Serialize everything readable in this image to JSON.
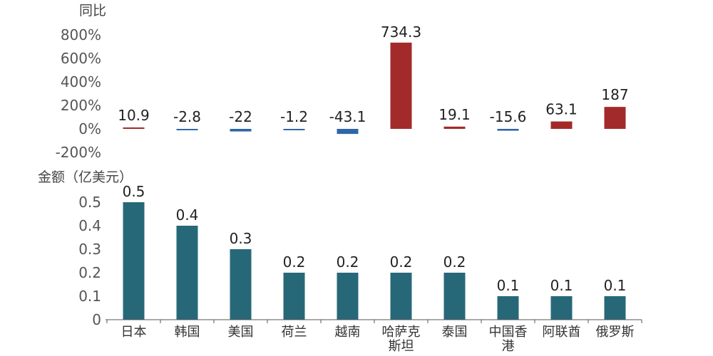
{
  "chart_data": [
    {
      "type": "bar",
      "ylabel": "同比",
      "ylim": [
        -200,
        800
      ],
      "yticks": [
        -200,
        0,
        200,
        400,
        600,
        800
      ],
      "ytick_labels": [
        "-200%",
        "0%",
        "200%",
        "400%",
        "600%",
        "800%"
      ],
      "categories": [
        "日本",
        "韩国",
        "美国",
        "荷兰",
        "越南",
        "哈萨克斯坦",
        "泰国",
        "中国香港",
        "阿联酋",
        "俄罗斯"
      ],
      "values": [
        10.9,
        -2.8,
        -22,
        -1.2,
        -43.1,
        734.3,
        19.1,
        -15.6,
        63.1,
        187
      ],
      "value_labels": [
        "10.9",
        "-2.8",
        "-22",
        "-1.2",
        "-43.1",
        "734.3",
        "19.1",
        "-15.6",
        "63.1",
        "187"
      ],
      "colors": {
        "positive": "#a32a2a",
        "negative": "#2e67a8"
      },
      "grid": false
    },
    {
      "type": "bar",
      "ylabel": "金额（亿美元）",
      "ylim": [
        0,
        0.5
      ],
      "yticks": [
        0,
        0.1,
        0.2,
        0.3,
        0.4,
        0.5
      ],
      "ytick_labels": [
        "0",
        "0.1",
        "0.2",
        "0.3",
        "0.4",
        "0.5"
      ],
      "categories": [
        "日本",
        "韩国",
        "美国",
        "荷兰",
        "越南",
        "哈萨克斯坦",
        "泰国",
        "中国香港",
        "阿联酋",
        "俄罗斯"
      ],
      "category_lines": [
        [
          "日本"
        ],
        [
          "韩国"
        ],
        [
          "美国"
        ],
        [
          "荷兰"
        ],
        [
          "越南"
        ],
        [
          "哈萨克",
          "斯坦"
        ],
        [
          "泰国"
        ],
        [
          "中国香",
          "港"
        ],
        [
          "阿联酋"
        ],
        [
          "俄罗斯"
        ]
      ],
      "values": [
        0.5,
        0.4,
        0.3,
        0.2,
        0.2,
        0.2,
        0.2,
        0.1,
        0.1,
        0.1
      ],
      "value_labels": [
        "0.5",
        "0.4",
        "0.3",
        "0.2",
        "0.2",
        "0.2",
        "0.2",
        "0.1",
        "0.1",
        "0.1"
      ],
      "colors": {
        "bar": "#276878"
      },
      "grid": false
    }
  ]
}
